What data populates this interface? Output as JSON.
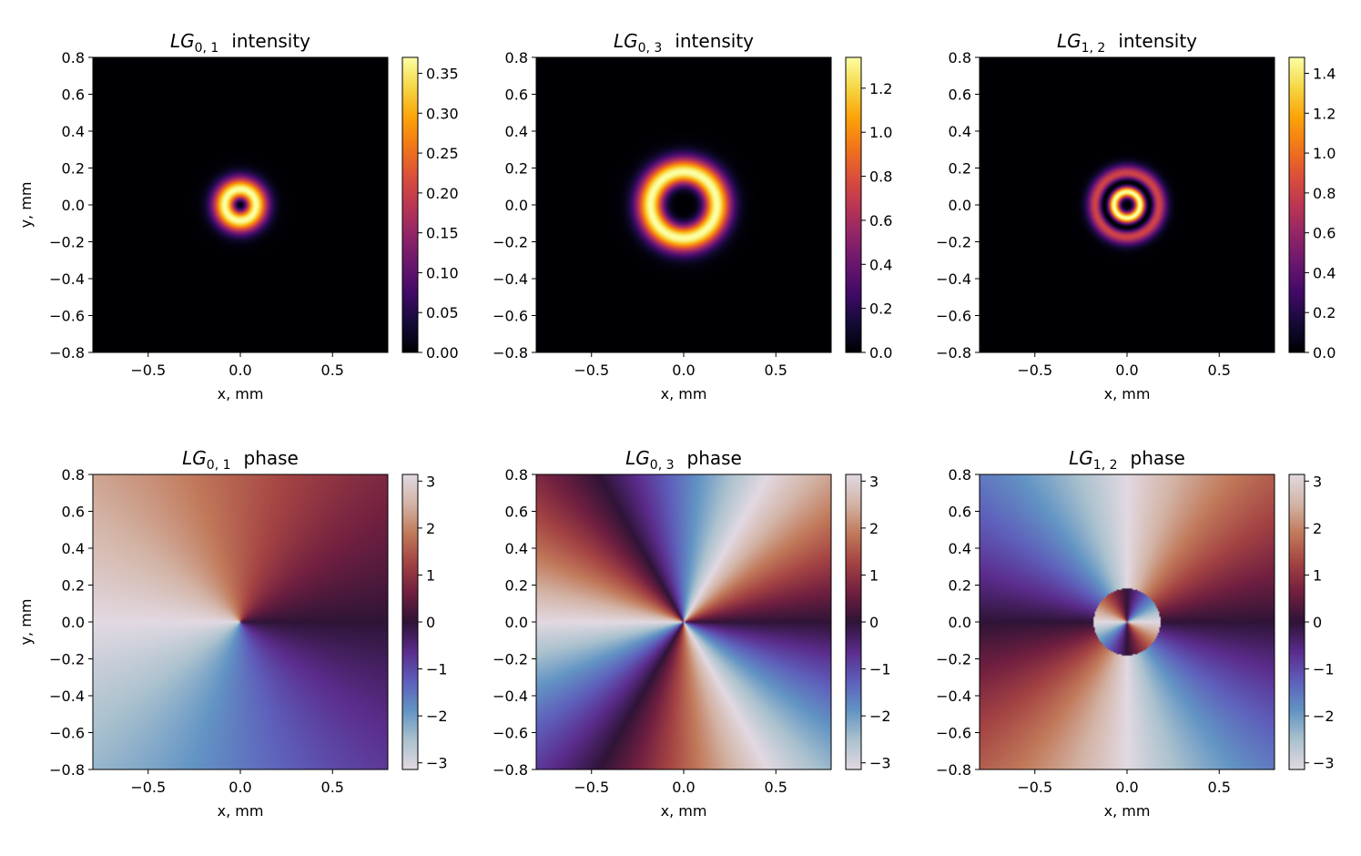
{
  "chart_data": [
    {
      "type": "heatmap",
      "mode": "intensity",
      "p": 0,
      "l": 1,
      "title": {
        "lg": "LG",
        "sub": "0, 1",
        "text": "intensity"
      },
      "xlabel": "x, mm",
      "ylabel": "y, mm",
      "xlim": [
        -0.8,
        0.8
      ],
      "ylim": [
        -0.8,
        0.8
      ],
      "xticks": [
        -0.5,
        0.0,
        0.5
      ],
      "xtick_labels": [
        "−0.5",
        "0.0",
        "0.5"
      ],
      "yticks": [
        0.8,
        0.6,
        0.4,
        0.2,
        0.0,
        -0.2,
        -0.4,
        -0.6,
        -0.8
      ],
      "ytick_labels": [
        "0.8",
        "0.6",
        "0.4",
        "0.2",
        "0.0",
        "−0.2",
        "−0.4",
        "−0.6",
        "−0.8"
      ],
      "colormap": "inferno",
      "clim": [
        0,
        0.37
      ],
      "colorbar_ticks": [
        0.0,
        0.05,
        0.1,
        0.15,
        0.2,
        0.25,
        0.3,
        0.35
      ],
      "colorbar_labels": [
        "0.00",
        "0.05",
        "0.10",
        "0.15",
        "0.20",
        "0.25",
        "0.30",
        "0.35"
      ],
      "ring_radius_mm": 0.085
    },
    {
      "type": "heatmap",
      "mode": "intensity",
      "p": 0,
      "l": 3,
      "title": {
        "lg": "LG",
        "sub": "0, 3",
        "text": "intensity"
      },
      "xlabel": "x, mm",
      "ylabel": "",
      "xlim": [
        -0.8,
        0.8
      ],
      "ylim": [
        -0.8,
        0.8
      ],
      "xticks": [
        -0.5,
        0.0,
        0.5
      ],
      "xtick_labels": [
        "−0.5",
        "0.0",
        "0.5"
      ],
      "yticks": [
        0.8,
        0.6,
        0.4,
        0.2,
        0.0,
        -0.2,
        -0.4,
        -0.6,
        -0.8
      ],
      "ytick_labels": [
        "0.8",
        "0.6",
        "0.4",
        "0.2",
        "0.0",
        "−0.2",
        "−0.4",
        "−0.6",
        "−0.8"
      ],
      "colormap": "inferno",
      "clim": [
        0,
        1.34
      ],
      "colorbar_ticks": [
        0.0,
        0.2,
        0.4,
        0.6,
        0.8,
        1.0,
        1.2
      ],
      "colorbar_labels": [
        "0.0",
        "0.2",
        "0.4",
        "0.6",
        "0.8",
        "1.0",
        "1.2"
      ],
      "ring_radius_mm": 0.18
    },
    {
      "type": "heatmap",
      "mode": "intensity",
      "p": 1,
      "l": 2,
      "title": {
        "lg": "LG",
        "sub": "1, 2",
        "text": "intensity"
      },
      "xlabel": "x, mm",
      "ylabel": "",
      "xlim": [
        -0.8,
        0.8
      ],
      "ylim": [
        -0.8,
        0.8
      ],
      "xticks": [
        -0.5,
        0.0,
        0.5
      ],
      "xtick_labels": [
        "−0.5",
        "0.0",
        "0.5"
      ],
      "yticks": [
        0.8,
        0.6,
        0.4,
        0.2,
        0.0,
        -0.2,
        -0.4,
        -0.6,
        -0.8
      ],
      "ytick_labels": [
        "0.8",
        "0.6",
        "0.4",
        "0.2",
        "0.0",
        "−0.2",
        "−0.4",
        "−0.6",
        "−0.8"
      ],
      "colormap": "inferno",
      "clim": [
        0,
        1.48
      ],
      "colorbar_ticks": [
        0.0,
        0.2,
        0.4,
        0.6,
        0.8,
        1.0,
        1.2,
        1.4
      ],
      "colorbar_labels": [
        "0.0",
        "0.2",
        "0.4",
        "0.6",
        "0.8",
        "1.0",
        "1.2",
        "1.4"
      ],
      "ring_radius_mm": 0.1
    },
    {
      "type": "heatmap",
      "mode": "phase",
      "p": 0,
      "l": 1,
      "title": {
        "lg": "LG",
        "sub": "0, 1",
        "text": "phase"
      },
      "xlabel": "x, mm",
      "ylabel": "y, mm",
      "xlim": [
        -0.8,
        0.8
      ],
      "ylim": [
        -0.8,
        0.8
      ],
      "xticks": [
        -0.5,
        0.0,
        0.5
      ],
      "xtick_labels": [
        "−0.5",
        "0.0",
        "0.5"
      ],
      "yticks": [
        0.8,
        0.6,
        0.4,
        0.2,
        0.0,
        -0.2,
        -0.4,
        -0.6,
        -0.8
      ],
      "ytick_labels": [
        "0.8",
        "0.6",
        "0.4",
        "0.2",
        "0.0",
        "−0.2",
        "−0.4",
        "−0.6",
        "−0.8"
      ],
      "colormap": "twilight",
      "clim": [
        -3.1416,
        3.1416
      ],
      "colorbar_ticks": [
        3,
        2,
        1,
        0,
        -1,
        -2,
        -3
      ],
      "colorbar_labels": [
        "3",
        "2",
        "1",
        "0",
        "−1",
        "−2",
        "−3"
      ],
      "phase_flip_radius_mm": 0
    },
    {
      "type": "heatmap",
      "mode": "phase",
      "p": 0,
      "l": 3,
      "title": {
        "lg": "LG",
        "sub": "0, 3",
        "text": "phase"
      },
      "xlabel": "x, mm",
      "ylabel": "",
      "xlim": [
        -0.8,
        0.8
      ],
      "ylim": [
        -0.8,
        0.8
      ],
      "xticks": [
        -0.5,
        0.0,
        0.5
      ],
      "xtick_labels": [
        "−0.5",
        "0.0",
        "0.5"
      ],
      "yticks": [
        0.8,
        0.6,
        0.4,
        0.2,
        0.0,
        -0.2,
        -0.4,
        -0.6,
        -0.8
      ],
      "ytick_labels": [
        "0.8",
        "0.6",
        "0.4",
        "0.2",
        "0.0",
        "−0.2",
        "−0.4",
        "−0.6",
        "−0.8"
      ],
      "colormap": "twilight",
      "clim": [
        -3.1416,
        3.1416
      ],
      "colorbar_ticks": [
        3,
        2,
        1,
        0,
        -1,
        -2,
        -3
      ],
      "colorbar_labels": [
        "3",
        "2",
        "1",
        "0",
        "−1",
        "−2",
        "−3"
      ],
      "phase_flip_radius_mm": 0
    },
    {
      "type": "heatmap",
      "mode": "phase",
      "p": 1,
      "l": 2,
      "title": {
        "lg": "LG",
        "sub": "1, 2",
        "text": "phase"
      },
      "xlabel": "x, mm",
      "ylabel": "",
      "xlim": [
        -0.8,
        0.8
      ],
      "ylim": [
        -0.8,
        0.8
      ],
      "xticks": [
        -0.5,
        0.0,
        0.5
      ],
      "xtick_labels": [
        "−0.5",
        "0.0",
        "0.5"
      ],
      "yticks": [
        0.8,
        0.6,
        0.4,
        0.2,
        0.0,
        -0.2,
        -0.4,
        -0.6,
        -0.8
      ],
      "ytick_labels": [
        "0.8",
        "0.6",
        "0.4",
        "0.2",
        "0.0",
        "−0.2",
        "−0.4",
        "−0.6",
        "−0.8"
      ],
      "colormap": "twilight",
      "clim": [
        -3.1416,
        3.1416
      ],
      "colorbar_ticks": [
        3,
        2,
        1,
        0,
        -1,
        -2,
        -3
      ],
      "colorbar_labels": [
        "3",
        "2",
        "1",
        "0",
        "−1",
        "−2",
        "−3"
      ],
      "phase_flip_radius_mm": 0.18
    }
  ]
}
